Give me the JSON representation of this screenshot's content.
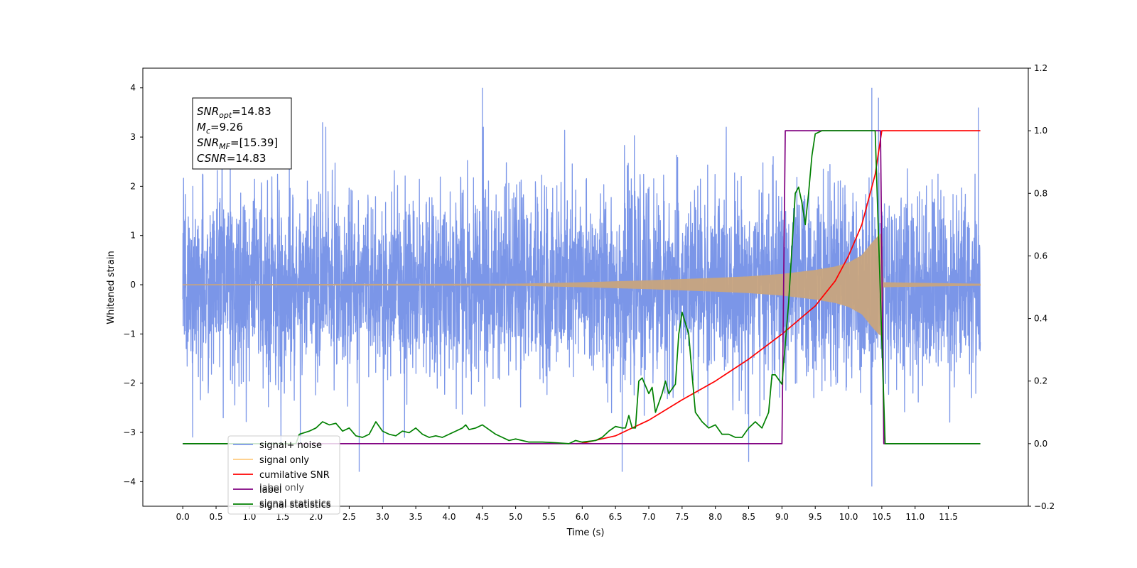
{
  "chart_data": {
    "type": "line",
    "xlabel": "Time (s)",
    "ylabel": "Whitened strain",
    "y2label": "",
    "xlim": [
      -0.6,
      12.7
    ],
    "ylim": [
      -4.5,
      4.4
    ],
    "y2lim": [
      -0.2,
      1.2
    ],
    "x_ticks": [
      0.0,
      0.5,
      1.0,
      1.5,
      2.0,
      2.5,
      3.0,
      3.5,
      4.0,
      4.5,
      5.0,
      5.5,
      6.0,
      6.5,
      7.0,
      7.5,
      8.0,
      8.5,
      9.0,
      9.5,
      10.0,
      10.5,
      11.0,
      11.5
    ],
    "x_tick_labels": [
      "0.0",
      "0.5",
      "1.0",
      "1.5",
      "2.0",
      "2.5",
      "3.0",
      "3.5",
      "4.0",
      "4.5",
      "5.0",
      "5.5",
      "6.0",
      "6.5",
      "7.0",
      "7.5",
      "8.0",
      "8.5",
      "9.0",
      "9.5",
      "10.0",
      "10.5",
      "11.0",
      "11.5"
    ],
    "y_ticks": [
      -4,
      -3,
      -2,
      -1,
      0,
      1,
      2,
      3,
      4
    ],
    "y_tick_labels": [
      "−4",
      "−3",
      "−2",
      "−1",
      "0",
      "1",
      "2",
      "3",
      "4"
    ],
    "y2_ticks": [
      -0.2,
      0.0,
      0.2,
      0.4,
      0.6,
      0.8,
      1.0,
      1.2
    ],
    "y2_tick_labels": [
      "−0.2",
      "0.0",
      "0.2",
      "0.4",
      "0.6",
      "0.8",
      "1.0",
      "1.2"
    ],
    "grid": false,
    "legend_position": "lower-left",
    "annotation": {
      "lines": [
        {
          "main": "SNR",
          "sub": "opt",
          "rest": "=14.83"
        },
        {
          "main": "M",
          "sub": "c",
          "rest": "=9.26"
        },
        {
          "main": "SNR",
          "sub": "MF",
          "rest": "=[15.39]"
        },
        {
          "main": "CSNR",
          "sub": "",
          "rest": "=14.83"
        }
      ]
    },
    "series": [
      {
        "name": "signal+ noise",
        "axis": "left",
        "color": "#7b96e8",
        "kind": "noise",
        "t_start": 0.0,
        "t_end": 11.98,
        "typical_amplitude": 1.9,
        "extremes": [
          [
            1.6,
            3.3
          ],
          [
            2.1,
            3.3
          ],
          [
            4.5,
            4.0
          ],
          [
            6.6,
            -3.8
          ],
          [
            8.5,
            -3.6
          ],
          [
            10.35,
            4.0
          ],
          [
            10.35,
            -4.1
          ],
          [
            10.45,
            3.8
          ],
          [
            11.95,
            3.6
          ],
          [
            2.65,
            -3.8
          ]
        ]
      },
      {
        "name": "signal only",
        "axis": "left",
        "color": "#c8a47e",
        "kind": "chirp_envelope",
        "t_start": 0.0,
        "t_end": 11.98,
        "merge_time": 10.5,
        "envelope": [
          [
            0.0,
            0.01
          ],
          [
            5.0,
            0.02
          ],
          [
            6.0,
            0.05
          ],
          [
            7.0,
            0.09
          ],
          [
            8.0,
            0.14
          ],
          [
            8.5,
            0.17
          ],
          [
            9.0,
            0.22
          ],
          [
            9.5,
            0.3
          ],
          [
            9.8,
            0.37
          ],
          [
            10.0,
            0.45
          ],
          [
            10.2,
            0.6
          ],
          [
            10.35,
            0.85
          ],
          [
            10.45,
            1.0
          ],
          [
            10.5,
            1.05
          ],
          [
            10.52,
            0.05
          ],
          [
            11.98,
            0.02
          ]
        ]
      },
      {
        "name": "cumilative SNR",
        "axis": "right",
        "color": "#ff0000",
        "points": [
          [
            5.9,
            0.0
          ],
          [
            6.0,
            0.001
          ],
          [
            6.5,
            0.025
          ],
          [
            7.0,
            0.075
          ],
          [
            7.5,
            0.14
          ],
          [
            8.0,
            0.2
          ],
          [
            8.5,
            0.27
          ],
          [
            9.0,
            0.35
          ],
          [
            9.5,
            0.44
          ],
          [
            9.8,
            0.52
          ],
          [
            10.0,
            0.6
          ],
          [
            10.2,
            0.7
          ],
          [
            10.4,
            0.86
          ],
          [
            10.5,
            1.0
          ],
          [
            11.98,
            1.0
          ]
        ]
      },
      {
        "name": "label",
        "axis": "right",
        "color": "#800080",
        "points": [
          [
            0.0,
            0.0
          ],
          [
            9.0,
            0.0
          ],
          [
            9.05,
            1.0
          ],
          [
            10.48,
            1.0
          ],
          [
            10.53,
            0.0
          ],
          [
            11.98,
            0.0
          ]
        ]
      },
      {
        "name": "signal statistics",
        "axis": "right",
        "color": "#008000",
        "points": [
          [
            0.0,
            0.0
          ],
          [
            1.7,
            0.0
          ],
          [
            1.75,
            0.03
          ],
          [
            1.9,
            0.04
          ],
          [
            2.0,
            0.05
          ],
          [
            2.1,
            0.07
          ],
          [
            2.2,
            0.06
          ],
          [
            2.3,
            0.065
          ],
          [
            2.4,
            0.04
          ],
          [
            2.5,
            0.05
          ],
          [
            2.6,
            0.025
          ],
          [
            2.7,
            0.02
          ],
          [
            2.8,
            0.03
          ],
          [
            2.9,
            0.07
          ],
          [
            3.0,
            0.04
          ],
          [
            3.1,
            0.03
          ],
          [
            3.2,
            0.025
          ],
          [
            3.3,
            0.04
          ],
          [
            3.4,
            0.035
          ],
          [
            3.5,
            0.05
          ],
          [
            3.6,
            0.03
          ],
          [
            3.7,
            0.02
          ],
          [
            3.8,
            0.025
          ],
          [
            3.9,
            0.02
          ],
          [
            4.0,
            0.03
          ],
          [
            4.1,
            0.04
          ],
          [
            4.2,
            0.05
          ],
          [
            4.25,
            0.06
          ],
          [
            4.3,
            0.045
          ],
          [
            4.4,
            0.05
          ],
          [
            4.5,
            0.06
          ],
          [
            4.6,
            0.045
          ],
          [
            4.7,
            0.03
          ],
          [
            4.8,
            0.02
          ],
          [
            4.9,
            0.01
          ],
          [
            5.0,
            0.015
          ],
          [
            5.2,
            0.005
          ],
          [
            5.4,
            0.005
          ],
          [
            5.6,
            0.003
          ],
          [
            5.8,
            0.0
          ],
          [
            5.9,
            0.01
          ],
          [
            6.0,
            0.005
          ],
          [
            6.2,
            0.01
          ],
          [
            6.3,
            0.02
          ],
          [
            6.4,
            0.04
          ],
          [
            6.5,
            0.055
          ],
          [
            6.6,
            0.05
          ],
          [
            6.65,
            0.05
          ],
          [
            6.7,
            0.09
          ],
          [
            6.75,
            0.05
          ],
          [
            6.8,
            0.05
          ],
          [
            6.85,
            0.2
          ],
          [
            6.9,
            0.21
          ],
          [
            7.0,
            0.16
          ],
          [
            7.05,
            0.18
          ],
          [
            7.1,
            0.1
          ],
          [
            7.2,
            0.16
          ],
          [
            7.25,
            0.2
          ],
          [
            7.3,
            0.16
          ],
          [
            7.4,
            0.19
          ],
          [
            7.45,
            0.35
          ],
          [
            7.5,
            0.42
          ],
          [
            7.6,
            0.35
          ],
          [
            7.65,
            0.22
          ],
          [
            7.7,
            0.1
          ],
          [
            7.8,
            0.07
          ],
          [
            7.9,
            0.05
          ],
          [
            8.0,
            0.06
          ],
          [
            8.1,
            0.03
          ],
          [
            8.2,
            0.03
          ],
          [
            8.3,
            0.02
          ],
          [
            8.4,
            0.02
          ],
          [
            8.5,
            0.05
          ],
          [
            8.6,
            0.07
          ],
          [
            8.7,
            0.05
          ],
          [
            8.8,
            0.1
          ],
          [
            8.85,
            0.22
          ],
          [
            8.9,
            0.22
          ],
          [
            9.0,
            0.19
          ],
          [
            9.1,
            0.45
          ],
          [
            9.2,
            0.8
          ],
          [
            9.25,
            0.82
          ],
          [
            9.3,
            0.77
          ],
          [
            9.35,
            0.7
          ],
          [
            9.4,
            0.8
          ],
          [
            9.45,
            0.92
          ],
          [
            9.5,
            0.99
          ],
          [
            9.6,
            1.0
          ],
          [
            10.4,
            1.0
          ],
          [
            10.55,
            0.0
          ],
          [
            11.98,
            0.0
          ]
        ]
      }
    ]
  },
  "legend": {
    "items": [
      {
        "label": "signal+ noise",
        "color": "#7b96e8"
      },
      {
        "label": "signal only",
        "color": "#ffcc80"
      },
      {
        "label": "cumilative SNR",
        "color": "#ff0000"
      },
      {
        "label": "label",
        "color": "#800080"
      },
      {
        "label": "signal statistics",
        "color": "#008000"
      }
    ],
    "overprinted_text": [
      "label only",
      "signal statistics"
    ]
  }
}
